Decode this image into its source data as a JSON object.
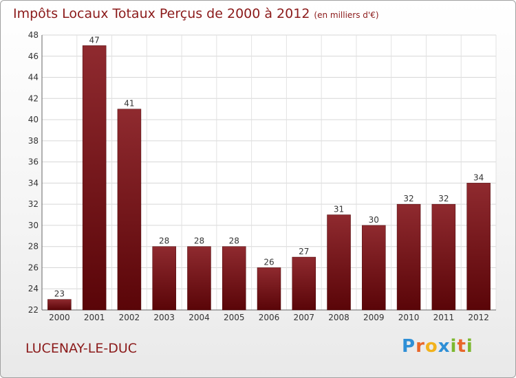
{
  "chart_data": {
    "type": "bar",
    "title": "Impôts Locaux Totaux Perçus de 2000 à 2012",
    "subtitle": "(en milliers d'€)",
    "xlabel": "",
    "ylabel": "",
    "categories": [
      "2000",
      "2001",
      "2002",
      "2003",
      "2004",
      "2005",
      "2006",
      "2007",
      "2008",
      "2009",
      "2010",
      "2011",
      "2012"
    ],
    "values": [
      23,
      47,
      41,
      28,
      28,
      28,
      26,
      27,
      31,
      30,
      32,
      32,
      34
    ],
    "ylim": [
      22,
      48
    ],
    "yticks": [
      22,
      24,
      26,
      28,
      30,
      32,
      34,
      36,
      38,
      40,
      42,
      44,
      46,
      48
    ],
    "grid": true,
    "bar_color": "#6e0f14"
  },
  "commune": "LUCENAY-LE-DUC",
  "logo": {
    "letters": [
      "P",
      "r",
      "o",
      "x",
      "i",
      "t",
      "i"
    ],
    "colors": [
      "#2e8fd6",
      "#e8662a",
      "#f2b21c",
      "#2e8fd6",
      "#7cb82f",
      "#e8662a",
      "#7cb82f"
    ]
  }
}
